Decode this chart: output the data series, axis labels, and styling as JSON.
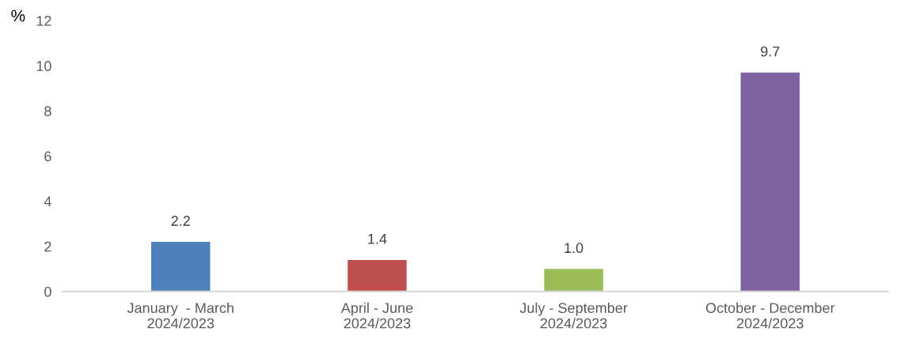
{
  "chart_data": {
    "type": "bar",
    "ylabel": "%",
    "categories": [
      "January  - March\n2024/2023",
      "April - June\n2024/2023",
      "July - September\n2024/2023",
      "October - December\n2024/2023"
    ],
    "values": [
      2.2,
      1.4,
      1.0,
      9.7
    ],
    "colors": [
      "#4f81bd",
      "#c0504d",
      "#9bbb59",
      "#8064a2"
    ],
    "value_labels": [
      "2.2",
      "1.4",
      "1.0",
      "9.7"
    ],
    "ylim": [
      0,
      12
    ],
    "yticks": [
      0,
      2,
      4,
      6,
      8,
      10,
      12
    ],
    "grid": false,
    "legend": false
  }
}
